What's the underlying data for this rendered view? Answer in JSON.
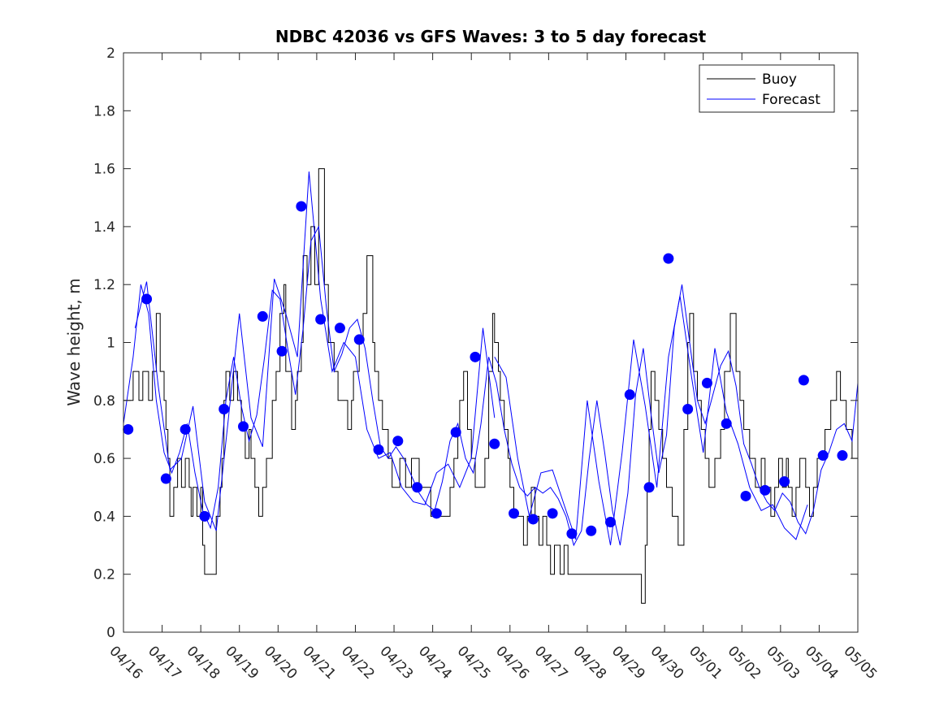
{
  "chart_data": {
    "type": "line",
    "title": "NDBC 42036 vs GFS Waves: 3 to 5 day forecast",
    "xlabel": "",
    "ylabel": "Wave height, m",
    "xlim": [
      "04/16",
      "05/05"
    ],
    "ylim": [
      0,
      2
    ],
    "yticks": [
      "0",
      "0.2",
      "0.4",
      "0.6",
      "0.8",
      "1",
      "1.2",
      "1.4",
      "1.6",
      "1.8",
      "2"
    ],
    "xticks": [
      "04/16",
      "04/17",
      "04/18",
      "04/19",
      "04/20",
      "04/21",
      "04/22",
      "04/23",
      "04/24",
      "04/25",
      "04/26",
      "04/27",
      "04/28",
      "04/29",
      "04/30",
      "05/01",
      "05/02",
      "05/03",
      "05/04",
      "05/05"
    ],
    "grid": false,
    "legend": {
      "position": "top-right",
      "entries": [
        "Buoy",
        "Forecast"
      ]
    },
    "colors": {
      "buoy": "#000000",
      "forecast": "#0000ff",
      "markers": "#0000ff"
    },
    "series": [
      {
        "name": "Buoy",
        "color": "#000000",
        "style": "step",
        "x": [
          0.0,
          0.25,
          0.4,
          0.5,
          0.65,
          0.75,
          0.85,
          0.95,
          1.05,
          1.1,
          1.15,
          1.2,
          1.3,
          1.4,
          1.5,
          1.6,
          1.7,
          1.75,
          1.8,
          1.9,
          2.0,
          2.05,
          2.1,
          2.15,
          2.2,
          2.3,
          2.4,
          2.5,
          2.55,
          2.6,
          2.65,
          2.75,
          2.85,
          2.95,
          3.05,
          3.15,
          3.25,
          3.3,
          3.4,
          3.5,
          3.6,
          3.7,
          3.85,
          3.95,
          4.05,
          4.15,
          4.2,
          4.35,
          4.45,
          4.5,
          4.6,
          4.65,
          4.75,
          4.85,
          4.95,
          5.05,
          5.2,
          5.3,
          5.45,
          5.55,
          5.65,
          5.8,
          5.9,
          5.95,
          6.1,
          6.2,
          6.3,
          6.45,
          6.5,
          6.6,
          6.7,
          6.85,
          6.95,
          7.05,
          7.15,
          7.3,
          7.45,
          7.55,
          7.65,
          7.75,
          7.85,
          7.95,
          8.05,
          8.2,
          8.35,
          8.45,
          8.55,
          8.65,
          8.7,
          8.8,
          8.9,
          9.0,
          9.1,
          9.25,
          9.35,
          9.45,
          9.55,
          9.6,
          9.7,
          9.75,
          9.85,
          9.95,
          10.0,
          10.1,
          10.25,
          10.35,
          10.45,
          10.55,
          10.65,
          10.75,
          10.85,
          10.95,
          11.05,
          11.15,
          11.2,
          11.3,
          11.4,
          11.5,
          11.6,
          11.8,
          12.0,
          12.2,
          12.4,
          12.6,
          12.8,
          13.0,
          13.2,
          13.4,
          13.5,
          13.55,
          13.6,
          13.65,
          13.75,
          13.85,
          13.95,
          14.05,
          14.2,
          14.35,
          14.5,
          14.6,
          14.65,
          14.75,
          14.85,
          14.95,
          15.05,
          15.15,
          15.3,
          15.45,
          15.55,
          15.7,
          15.85,
          15.95,
          16.05,
          16.2,
          16.35,
          16.5,
          16.6,
          16.75,
          16.85,
          16.95,
          17.05,
          17.15,
          17.2,
          17.3,
          17.4,
          17.5,
          17.65,
          17.75,
          17.85,
          17.95,
          18.05,
          18.15,
          18.3,
          18.45,
          18.55,
          18.7,
          18.85,
          19.0
        ],
        "y": [
          0.8,
          0.9,
          0.8,
          0.9,
          0.8,
          0.9,
          1.1,
          0.9,
          0.8,
          0.7,
          0.6,
          0.4,
          0.5,
          0.6,
          0.5,
          0.6,
          0.5,
          0.4,
          0.5,
          0.4,
          0.5,
          0.3,
          0.2,
          0.2,
          0.2,
          0.2,
          0.4,
          0.5,
          0.6,
          0.8,
          0.9,
          0.8,
          0.9,
          0.8,
          0.7,
          0.6,
          0.7,
          0.6,
          0.5,
          0.4,
          0.5,
          0.6,
          0.8,
          0.9,
          1.1,
          1.2,
          0.9,
          0.7,
          0.8,
          0.9,
          1.0,
          1.3,
          1.2,
          1.4,
          1.2,
          1.6,
          1.2,
          1.0,
          0.9,
          0.8,
          0.8,
          0.7,
          0.8,
          0.9,
          1.0,
          1.1,
          1.3,
          1.0,
          0.9,
          0.8,
          0.7,
          0.6,
          0.5,
          0.5,
          0.6,
          0.5,
          0.6,
          0.6,
          0.5,
          0.5,
          0.5,
          0.4,
          0.4,
          0.4,
          0.4,
          0.5,
          0.6,
          0.7,
          0.8,
          0.9,
          0.7,
          0.6,
          0.5,
          0.5,
          0.6,
          0.9,
          1.1,
          1.0,
          0.9,
          0.8,
          0.7,
          0.6,
          0.5,
          0.4,
          0.4,
          0.3,
          0.4,
          0.5,
          0.4,
          0.3,
          0.4,
          0.3,
          0.2,
          0.3,
          0.3,
          0.2,
          0.3,
          0.2,
          0.2,
          0.2,
          0.2,
          0.2,
          0.2,
          0.2,
          0.2,
          0.2,
          0.2,
          0.1,
          0.3,
          0.5,
          0.7,
          0.9,
          0.8,
          0.7,
          0.6,
          0.5,
          0.4,
          0.3,
          0.7,
          1.0,
          1.1,
          0.9,
          0.8,
          0.7,
          0.6,
          0.5,
          0.6,
          0.7,
          0.9,
          1.1,
          0.9,
          0.8,
          0.7,
          0.6,
          0.5,
          0.6,
          0.5,
          0.4,
          0.5,
          0.6,
          0.5,
          0.6,
          0.5,
          0.4,
          0.5,
          0.6,
          0.5,
          0.4,
          0.5,
          0.6,
          0.6,
          0.7,
          0.8,
          0.9,
          0.8,
          0.7,
          0.6,
          0.6
        ]
      },
      {
        "name": "Forecast",
        "color": "#0000ff",
        "x": [
          0.0,
          0.25,
          0.45,
          0.65,
          0.85,
          1.05,
          1.25,
          1.45,
          1.65,
          1.85,
          2.05,
          2.25,
          2.45,
          2.65,
          2.85,
          3.05,
          3.25,
          3.45,
          3.65,
          3.85,
          4.05,
          4.25,
          4.45,
          4.65,
          4.85,
          5.05,
          5.25,
          5.45,
          5.65,
          5.85,
          6.05,
          6.25,
          6.45,
          6.65,
          6.85,
          7.05,
          7.25,
          7.45,
          7.65,
          7.85,
          8.05,
          8.25,
          8.45,
          8.65,
          8.85,
          9.05,
          9.25,
          9.45,
          9.65,
          9.85,
          10.05,
          10.25,
          10.45,
          10.65,
          10.85,
          11.05,
          11.25,
          11.45,
          11.65,
          11.85,
          12.05,
          12.25,
          12.45,
          12.65,
          12.85,
          13.05,
          13.25,
          13.45,
          13.65,
          13.85,
          14.05,
          14.25,
          14.45,
          14.65,
          14.85,
          15.05,
          15.25,
          15.45,
          15.65,
          15.85,
          16.05,
          16.25,
          16.45,
          16.65,
          16.85,
          17.05,
          17.25,
          17.45,
          17.65,
          17.85,
          18.05,
          18.25,
          18.45,
          18.65,
          18.85,
          19.0
        ],
        "y": [
          0.72,
          0.95,
          1.2,
          1.1,
          0.8,
          0.62,
          0.55,
          0.62,
          0.72,
          0.55,
          0.42,
          0.36,
          0.5,
          0.8,
          0.95,
          0.78,
          0.66,
          0.75,
          0.95,
          1.18,
          1.15,
          0.98,
          0.82,
          1.05,
          1.35,
          1.4,
          1.12,
          0.9,
          0.96,
          1.05,
          1.08,
          0.98,
          0.8,
          0.64,
          0.6,
          0.64,
          0.6,
          0.54,
          0.48,
          0.44,
          0.42,
          0.52,
          0.66,
          0.72,
          0.6,
          0.55,
          0.72,
          0.95,
          0.86,
          0.7,
          0.58,
          0.5,
          0.47,
          0.5,
          0.48,
          0.5,
          0.46,
          0.4,
          0.3,
          0.35,
          0.6,
          0.8,
          0.62,
          0.42,
          0.3,
          0.48,
          0.82,
          0.98,
          0.75,
          0.55,
          0.68,
          1.05,
          1.2,
          1.0,
          0.8,
          0.72,
          0.82,
          0.92,
          0.97,
          0.85,
          0.65,
          0.58,
          0.5,
          0.45,
          0.42,
          0.48,
          0.45,
          0.38,
          0.34,
          0.42,
          0.56,
          0.62,
          0.7,
          0.72,
          0.66,
          0.86
        ]
      }
    ],
    "extra_forecast_runs": [
      {
        "x": [
          0.3,
          0.6,
          0.9,
          1.2,
          1.5,
          1.8,
          2.1,
          2.4,
          2.7,
          3.0,
          3.3,
          3.6,
          3.9,
          4.2,
          4.5,
          4.8,
          5.1,
          5.4,
          5.7,
          6.0,
          6.3,
          6.6,
          6.9,
          7.2,
          7.5,
          7.8,
          8.1,
          8.4,
          8.7,
          9.0,
          9.3,
          9.6
        ],
        "y": [
          1.05,
          1.21,
          0.85,
          0.56,
          0.6,
          0.78,
          0.45,
          0.35,
          0.72,
          1.1,
          0.74,
          0.64,
          1.22,
          1.1,
          0.95,
          1.59,
          1.15,
          0.9,
          1.0,
          0.95,
          0.7,
          0.6,
          0.62,
          0.5,
          0.45,
          0.44,
          0.55,
          0.58,
          0.5,
          0.6,
          1.05,
          0.74
        ]
      },
      {
        "x": [
          9.6,
          9.9,
          10.2,
          10.5,
          10.8,
          11.1,
          11.4,
          11.7,
          12.0,
          12.3,
          12.6,
          12.9,
          13.2,
          13.5,
          13.8,
          14.1,
          14.4,
          14.7,
          15.0,
          15.3,
          15.6,
          15.9,
          16.2,
          16.5,
          16.8,
          17.1,
          17.4,
          17.7
        ],
        "y": [
          0.95,
          0.88,
          0.6,
          0.4,
          0.55,
          0.56,
          0.44,
          0.32,
          0.8,
          0.52,
          0.3,
          0.62,
          1.01,
          0.78,
          0.5,
          0.95,
          1.16,
          0.88,
          0.62,
          0.98,
          0.76,
          0.65,
          0.5,
          0.42,
          0.44,
          0.36,
          0.32,
          0.44
        ]
      }
    ],
    "markers": {
      "x": [
        0.12,
        0.6,
        1.1,
        1.6,
        2.1,
        2.6,
        3.1,
        3.6,
        4.1,
        4.6,
        5.1,
        5.6,
        6.1,
        6.6,
        7.1,
        7.6,
        8.1,
        8.6,
        9.1,
        9.6,
        10.1,
        10.6,
        11.1,
        11.6,
        12.1,
        12.6,
        13.1,
        13.6,
        14.1,
        14.6,
        15.1,
        15.6,
        16.1,
        16.6,
        17.1,
        17.6,
        18.1,
        18.6
      ],
      "y": [
        0.7,
        1.15,
        0.53,
        0.7,
        0.4,
        0.77,
        0.71,
        1.09,
        0.97,
        1.47,
        1.08,
        1.05,
        1.01,
        0.63,
        0.66,
        0.5,
        0.41,
        0.69,
        0.95,
        0.65,
        0.41,
        0.39,
        0.41,
        0.34,
        0.35,
        0.38,
        0.82,
        0.5,
        1.29,
        0.77,
        0.86,
        0.72,
        0.47,
        0.49,
        0.52,
        0.87,
        0.61,
        0.61
      ]
    }
  }
}
